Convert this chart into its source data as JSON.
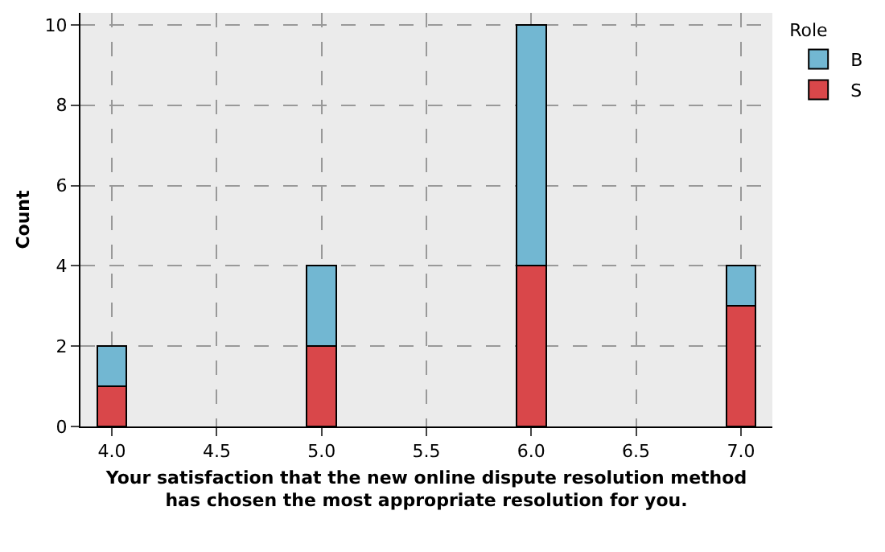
{
  "chart_data": {
    "type": "bar",
    "stacked": true,
    "xlabel": "Your satisfaction that the new online dispute resolution method has chosen the most appropriate resolution for you.",
    "ylabel": "Count",
    "legend_title": "Role",
    "x": [
      4,
      5,
      6,
      7
    ],
    "series": [
      {
        "name": "S",
        "color": "#d9474a",
        "values": [
          1,
          2,
          4,
          3
        ]
      },
      {
        "name": "B",
        "color": "#72b7d2",
        "values": [
          1,
          2,
          6,
          1
        ]
      }
    ],
    "xlim": [
      3.85,
      7.15
    ],
    "xticks": [
      {
        "value": 4,
        "label": "4.0"
      },
      {
        "value": 4.5,
        "label": "4.5"
      },
      {
        "value": 5,
        "label": "5.0"
      },
      {
        "value": 5.5,
        "label": "5.5"
      },
      {
        "value": 6,
        "label": "6.0"
      },
      {
        "value": 6.5,
        "label": "6.5"
      },
      {
        "value": 7,
        "label": "7.0"
      }
    ],
    "ylim": [
      0,
      10.3
    ],
    "yticks": [
      0,
      2,
      4,
      6,
      8,
      10
    ],
    "grid": true,
    "legend": "right"
  }
}
